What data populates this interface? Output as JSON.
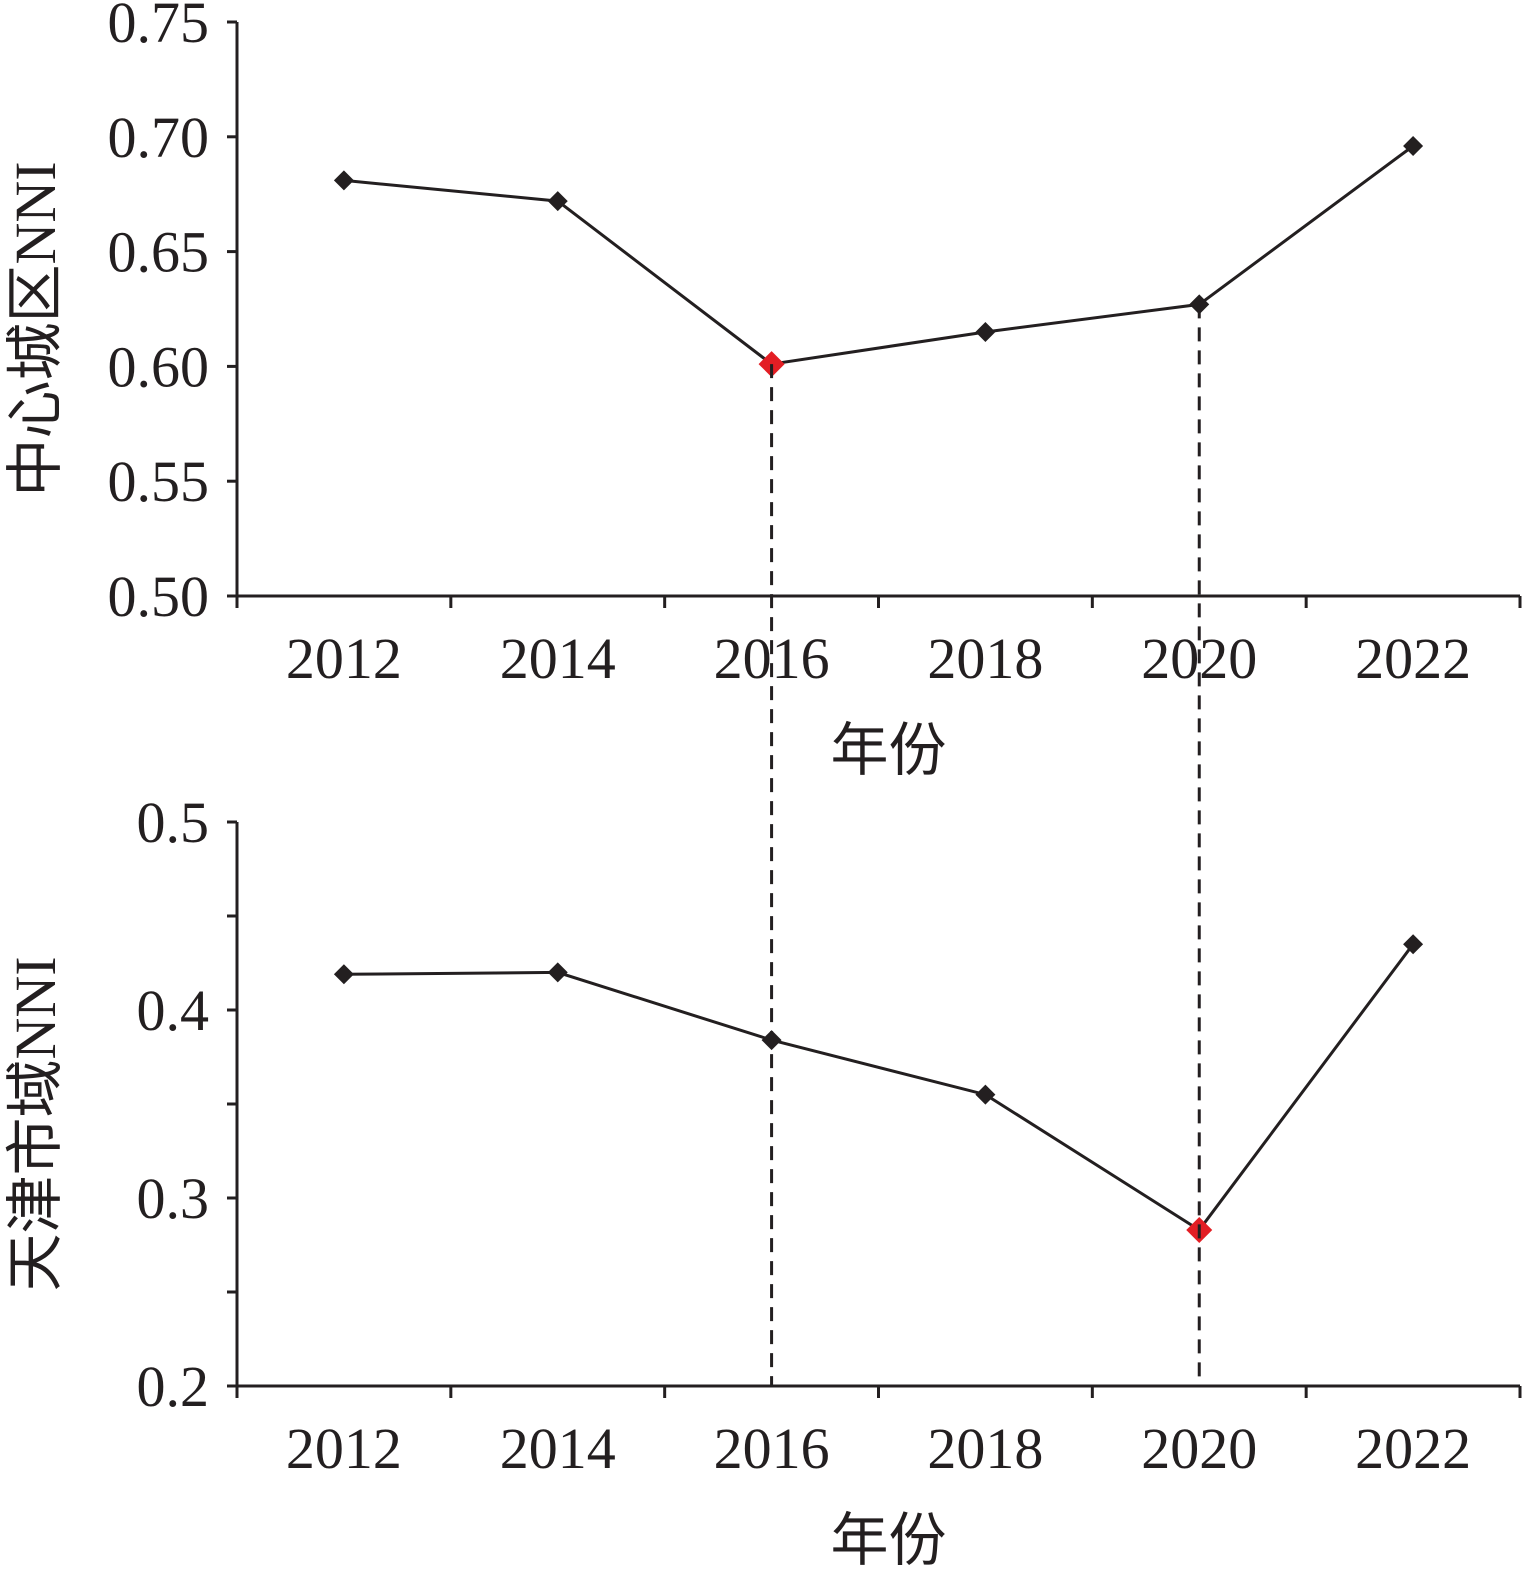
{
  "chart_data": [
    {
      "type": "line",
      "categories": [
        "2012",
        "2014",
        "2016",
        "2018",
        "2020",
        "2022"
      ],
      "values": [
        0.681,
        0.672,
        0.601,
        0.615,
        0.627,
        0.696
      ],
      "highlight_index": 2,
      "dashed_guides": [
        "2016",
        "2020"
      ],
      "xlabel": "年份",
      "ylabel": "中心城区NNI",
      "ylim": [
        0.5,
        0.75
      ],
      "yticks": [
        "0.50",
        "0.55",
        "0.60",
        "0.65",
        "0.70",
        "0.75"
      ],
      "grid": false
    },
    {
      "type": "line",
      "categories": [
        "2012",
        "2014",
        "2016",
        "2018",
        "2020",
        "2022"
      ],
      "values": [
        0.419,
        0.42,
        0.384,
        0.355,
        0.283,
        0.435
      ],
      "highlight_index": 4,
      "dashed_guides": [
        "2016",
        "2020"
      ],
      "xlabel": "年份",
      "ylabel": "天津市域NNI",
      "ylim": [
        0.2,
        0.5
      ],
      "yticks": [
        "0.2",
        "0.3",
        "0.4",
        "0.5"
      ],
      "grid": false
    }
  ],
  "colors": {
    "line": "#231f20",
    "marker": "#231f20",
    "highlight": "#e31e24"
  }
}
